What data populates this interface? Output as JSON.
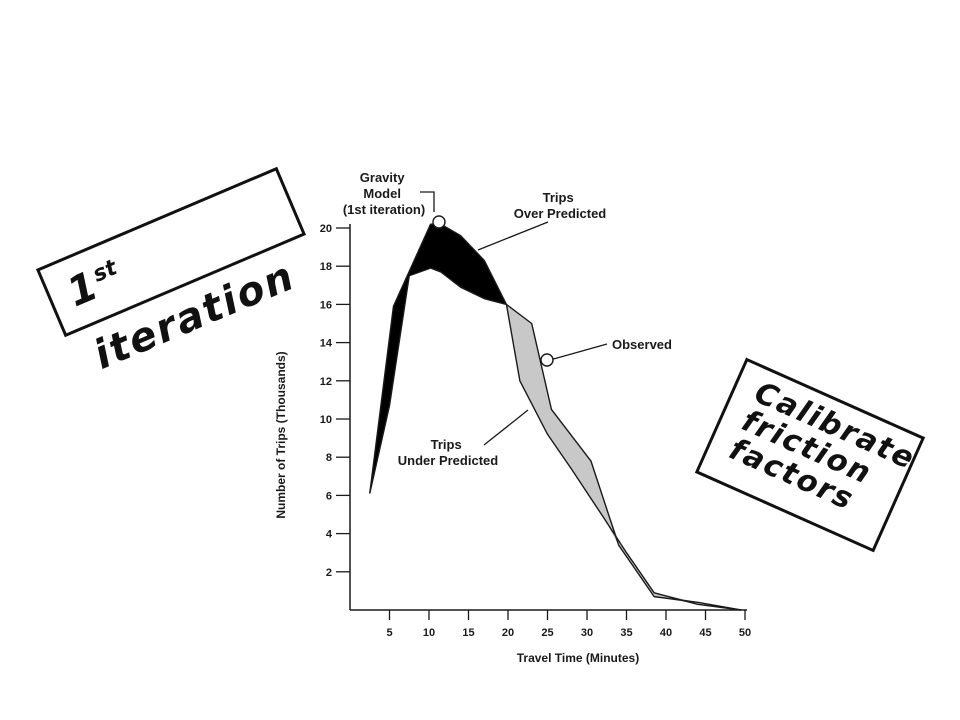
{
  "chart_data": {
    "type": "area",
    "xlabel": "Travel Time (Minutes)",
    "ylabel": "Number of Trips (Thousands)",
    "xlim": [
      0,
      50
    ],
    "ylim": [
      0,
      20
    ],
    "x_ticks": [
      5,
      10,
      15,
      20,
      25,
      30,
      35,
      40,
      45,
      50
    ],
    "y_ticks": [
      2,
      4,
      6,
      8,
      10,
      12,
      14,
      16,
      18,
      20
    ],
    "series": [
      {
        "name": "Gravity Model (1st iteration)",
        "x": [
          2.5,
          5.5,
          10.2,
          11.5,
          14,
          17,
          19.8,
          23,
          25.5,
          30.5,
          34,
          38.5,
          44,
          49.5
        ],
        "y": [
          6.1,
          15.9,
          20.2,
          20.2,
          19.6,
          18.3,
          16.0,
          15.0,
          10.5,
          7.8,
          3.4,
          0.7,
          0.4,
          0.0
        ]
      },
      {
        "name": "Observed",
        "x": [
          2.5,
          5,
          7.5,
          10.2,
          11.5,
          14,
          17,
          19.8,
          21.5,
          25,
          28,
          32,
          35,
          38.5,
          44,
          49.5
        ],
        "y": [
          6.1,
          10.7,
          17.5,
          17.9,
          17.7,
          16.9,
          16.3,
          16.0,
          12.0,
          9.2,
          7.4,
          4.9,
          3.0,
          0.9,
          0.3,
          0.0
        ]
      }
    ],
    "shading": {
      "over_predicted": "#000000",
      "under_predicted": "#c8c8c8"
    },
    "annotations": {
      "gravity_model": [
        "Gravity",
        "Model",
        "(1st iteration)"
      ],
      "over_predicted": [
        "Trips",
        "Over Predicted"
      ],
      "observed": "Observed",
      "under_predicted": [
        "Trips",
        "Under Predicted"
      ]
    }
  },
  "callouts": {
    "iteration": {
      "number": "1",
      "suffix": "st",
      "word": " iteration"
    },
    "calibrate": {
      "line1": "Calibrate",
      "line2": "friction",
      "line3": "factors"
    }
  }
}
